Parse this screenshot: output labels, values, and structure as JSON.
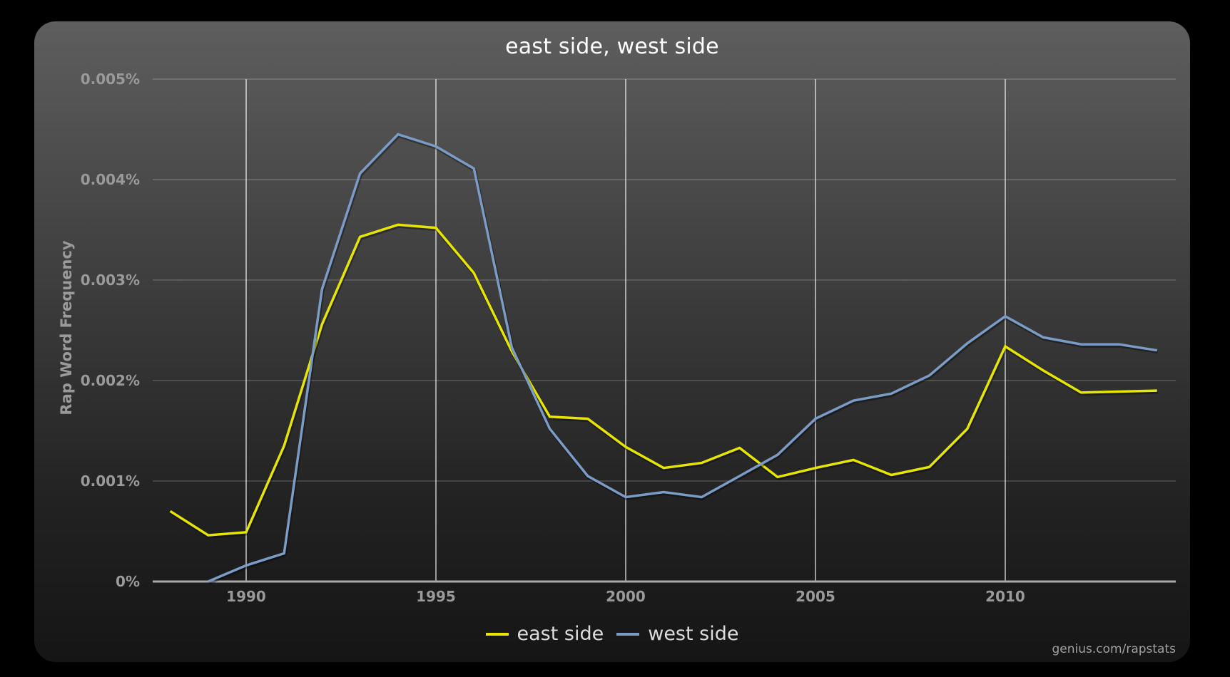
{
  "chart": {
    "title": "east side, west side",
    "ylabel": "Rap Word Frequency",
    "footer": "genius.com/rapstats",
    "colors": {
      "east": "#e6e600",
      "west": "#7b9cc6"
    }
  },
  "legend": [
    {
      "label": "east side",
      "color": "#e6e600"
    },
    {
      "label": "west side",
      "color": "#7b9cc6"
    }
  ],
  "chart_data": {
    "type": "line",
    "title": "east side, west side",
    "xlabel": "",
    "ylabel": "Rap Word Frequency",
    "x": [
      1988,
      1989,
      1990,
      1991,
      1992,
      1993,
      1994,
      1995,
      1996,
      1997,
      1998,
      1999,
      2000,
      2001,
      2002,
      2003,
      2004,
      2005,
      2006,
      2007,
      2008,
      2009,
      2010,
      2011,
      2012,
      2013,
      2014
    ],
    "series": [
      {
        "name": "east side",
        "color": "#e6e600",
        "values": [
          0.0007,
          0.00046,
          0.00049,
          0.00135,
          0.00256,
          0.00343,
          0.00355,
          0.00352,
          0.00307,
          0.00229,
          0.00164,
          0.00162,
          0.00134,
          0.00113,
          0.00118,
          0.00133,
          0.00104,
          0.00113,
          0.00121,
          0.00106,
          0.00114,
          0.00152,
          0.00234,
          0.0021,
          0.00188,
          0.00189,
          0.0019
        ]
      },
      {
        "name": "west side",
        "color": "#7b9cc6",
        "values": [
          null,
          0.0,
          0.00016,
          0.00028,
          0.00291,
          0.00406,
          0.00445,
          0.00433,
          0.00411,
          0.00233,
          0.00152,
          0.00105,
          0.00084,
          0.00089,
          0.00084,
          0.00105,
          0.00126,
          0.00162,
          0.0018,
          0.00187,
          0.00205,
          0.00237,
          0.00264,
          0.00243,
          0.00236,
          0.00236,
          0.0023
        ]
      }
    ],
    "yticks": [
      "0%",
      "0.001%",
      "0.002%",
      "0.003%",
      "0.004%",
      "0.005%"
    ],
    "ytick_values": [
      0,
      0.001,
      0.002,
      0.003,
      0.004,
      0.005
    ],
    "xticks": [
      1990,
      1995,
      2000,
      2005,
      2010
    ],
    "ylim": [
      0,
      0.005
    ],
    "xlim": [
      1987.6,
      2014.5
    ],
    "grid": {
      "horizontal": true,
      "vertical_at_xticks": true
    },
    "legend_position": "bottom"
  }
}
